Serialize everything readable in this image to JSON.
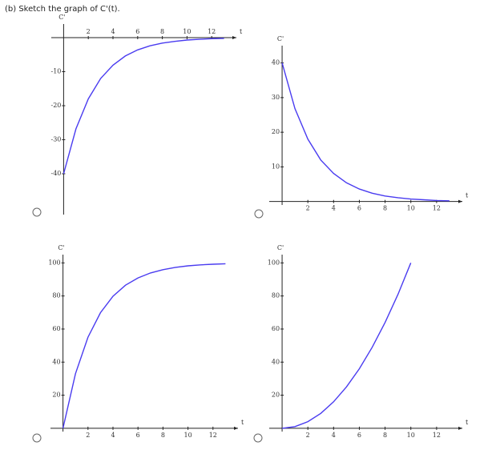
{
  "prompt": "(b) Sketch the graph of C'(t).",
  "chart_data": [
    {
      "type": "line",
      "x_label": "t",
      "y_label": "C'",
      "color": "#4a3cf0",
      "x": [
        0,
        1,
        2,
        3,
        4,
        5,
        6,
        7,
        8,
        9,
        10,
        11,
        12,
        13
      ],
      "values": [
        -40,
        -26.8,
        -18.0,
        -12.0,
        -8.1,
        -5.4,
        -3.6,
        -2.4,
        -1.6,
        -1.1,
        -0.7,
        -0.5,
        -0.3,
        -0.2
      ],
      "xlim": [
        -1,
        14
      ],
      "ylim": [
        -52,
        4
      ],
      "xticks": [
        2,
        4,
        6,
        8,
        10,
        12
      ],
      "yticks": [
        -10,
        -20,
        -30,
        -40
      ],
      "grid": false
    },
    {
      "type": "line",
      "x_label": "t",
      "y_label": "C'",
      "color": "#4a3cf0",
      "x": [
        0,
        1,
        2,
        3,
        4,
        5,
        6,
        7,
        8,
        9,
        10,
        11,
        12,
        13
      ],
      "values": [
        40,
        26.8,
        18.0,
        12.0,
        8.1,
        5.4,
        3.6,
        2.4,
        1.6,
        1.1,
        0.7,
        0.5,
        0.3,
        0.2
      ],
      "xlim": [
        -1,
        14
      ],
      "ylim": [
        -1,
        45
      ],
      "xticks": [
        2,
        4,
        6,
        8,
        10,
        12
      ],
      "yticks": [
        10,
        20,
        30,
        40
      ],
      "grid": false
    },
    {
      "type": "line",
      "x_label": "t",
      "y_label": "C'",
      "color": "#4a3cf0",
      "x": [
        0,
        1,
        2,
        3,
        4,
        5,
        6,
        7,
        8,
        9,
        10,
        11,
        12,
        13
      ],
      "values": [
        0,
        33.0,
        55.1,
        69.9,
        79.8,
        86.5,
        90.9,
        93.9,
        95.9,
        97.3,
        98.2,
        98.8,
        99.2,
        99.5
      ],
      "xlim": [
        -1,
        14
      ],
      "ylim": [
        -2,
        105
      ],
      "xticks": [
        2,
        4,
        6,
        8,
        10,
        12
      ],
      "yticks": [
        20,
        40,
        60,
        80,
        100
      ],
      "grid": false
    },
    {
      "type": "line",
      "x_label": "t",
      "y_label": "C'",
      "color": "#4a3cf0",
      "x": [
        0,
        1,
        2,
        3,
        4,
        5,
        6,
        7,
        8,
        9,
        10
      ],
      "values": [
        0,
        1,
        4,
        9,
        16,
        25,
        36,
        49,
        64,
        81,
        100
      ],
      "xlim": [
        -1,
        14
      ],
      "ylim": [
        -2,
        105
      ],
      "xticks": [
        2,
        4,
        6,
        8,
        10,
        12
      ],
      "yticks": [
        20,
        40,
        60,
        80,
        100
      ],
      "grid": false
    }
  ]
}
